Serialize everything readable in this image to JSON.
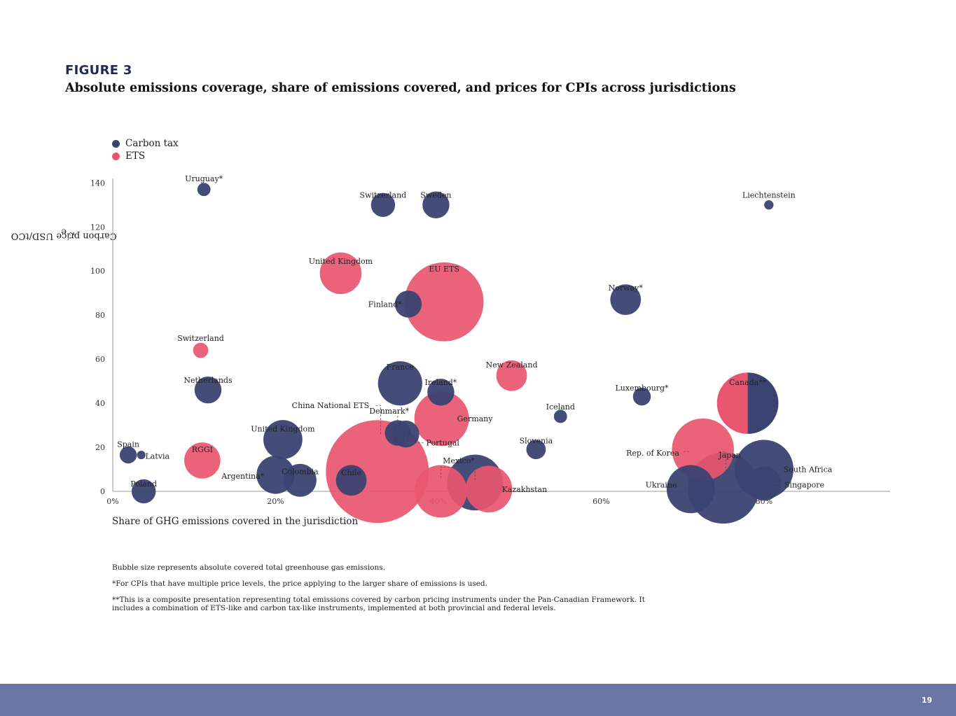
{
  "figure": {
    "label": "FIGURE 3",
    "title": "Absolute emissions coverage, share of emissions covered, and prices for CPIs across jurisdictions"
  },
  "legend": [
    {
      "label": "Carbon tax",
      "color": "#3b4270"
    },
    {
      "label": "ETS",
      "color": "#e8566f"
    }
  ],
  "notes": [
    "Bubble size represents absolute covered total greenhouse gas emissions.",
    "*For CPIs that have multiple price levels, the price applying to the larger share of emissions is used.",
    "**This is a composite presentation representing total emissions covered by carbon pricing instruments under the Pan-Canadian Framework. It includes a combination of ETS-like and carbon tax-like instruments, implemented at both provincial and federal levels."
  ],
  "page_number": "19",
  "chart_data": {
    "type": "scatter",
    "subtype": "bubble",
    "xlabel": "Share of GHG emissions covered in the jurisdiction",
    "ylabel_main": "Carbon price USD/tCO",
    "ylabel_sub": "2",
    "ylabel_end": "e",
    "x_ticks": [
      {
        "value": 0,
        "label": "0%"
      },
      {
        "value": 20,
        "label": "20%"
      },
      {
        "value": 40,
        "label": "40%"
      },
      {
        "value": 60,
        "label": "60%"
      },
      {
        "value": 80,
        "label": "80%"
      }
    ],
    "y_ticks": [
      {
        "value": 0,
        "label": "0"
      },
      {
        "value": 20,
        "label": "20"
      },
      {
        "value": 40,
        "label": "40"
      },
      {
        "value": 60,
        "label": "60"
      },
      {
        "value": 80,
        "label": "80"
      },
      {
        "value": 100,
        "label": "100"
      },
      {
        "value": 120,
        "label": "120"
      },
      {
        "value": 140,
        "label": "140"
      }
    ],
    "xlim": [
      0,
      95.5
    ],
    "ylim": [
      0,
      142
    ],
    "colors": {
      "tax": "#3b4270",
      "ets": "#e8566f"
    },
    "points": [
      {
        "name": "Uruguay*",
        "type": "tax",
        "x": 11.2,
        "y": 137,
        "size": 1.2
      },
      {
        "name": "Switzerland",
        "type": "tax",
        "x": 33.2,
        "y": 130,
        "size": 4
      },
      {
        "name": "Sweden",
        "type": "tax",
        "x": 39.7,
        "y": 130,
        "size": 5
      },
      {
        "name": "Liechtenstein",
        "type": "tax",
        "x": 80.6,
        "y": 130,
        "size": 0.6
      },
      {
        "name": "United Kingdom",
        "type": "ets",
        "x": 28,
        "y": 99,
        "size": 12
      },
      {
        "name": "EU ETS",
        "type": "ets",
        "x": 40.7,
        "y": 86,
        "size": 43
      },
      {
        "name": "Finland*",
        "type": "tax",
        "x": 36.3,
        "y": 85,
        "size": 5
      },
      {
        "name": "Norway*",
        "type": "tax",
        "x": 63,
        "y": 87,
        "size": 6.5
      },
      {
        "name": "Switzerland",
        "type": "ets",
        "x": 10.8,
        "y": 64,
        "size": 1.6
      },
      {
        "name": "Netherlands",
        "type": "tax",
        "x": 11.7,
        "y": 46,
        "size": 5
      },
      {
        "name": "France",
        "type": "tax",
        "x": 35.3,
        "y": 49,
        "size": 13.5
      },
      {
        "name": "Ireland*",
        "type": "tax",
        "x": 40.3,
        "y": 45,
        "size": 5
      },
      {
        "name": "New Zealand",
        "type": "ets",
        "x": 49,
        "y": 52.5,
        "size": 6.5
      },
      {
        "name": "Luxembourg*",
        "type": "tax",
        "x": 65,
        "y": 43,
        "size": 2.2
      },
      {
        "name": "Iceland",
        "type": "tax",
        "x": 55,
        "y": 34,
        "size": 1.2
      },
      {
        "name": "Germany",
        "type": "ets",
        "x": 40.4,
        "y": 33,
        "size": 20.5
      },
      {
        "name": "Denmark*",
        "type": "tax",
        "x": 35,
        "y": 26.5,
        "size": 4.5
      },
      {
        "name": "Portugal",
        "type": "tax",
        "x": 36,
        "y": 26,
        "size": 5
      },
      {
        "name": "China National ETS",
        "type": "ets",
        "x": 32.5,
        "y": 9,
        "size": 73
      },
      {
        "name": "United Kingdom",
        "type": "tax",
        "x": 20.9,
        "y": 23.5,
        "size": 10.5
      },
      {
        "name": "Slovenia",
        "type": "tax",
        "x": 52,
        "y": 19,
        "size": 2.6
      },
      {
        "name": "Spain",
        "type": "tax",
        "x": 1.9,
        "y": 16.5,
        "size": 2
      },
      {
        "name": "RGGI",
        "type": "ets",
        "x": 11,
        "y": 14,
        "size": 9
      },
      {
        "name": "Argentina*",
        "type": "tax",
        "x": 20,
        "y": 7.5,
        "size": 10
      },
      {
        "name": "Colombia",
        "type": "tax",
        "x": 23,
        "y": 5,
        "size": 7.5
      },
      {
        "name": "Chile",
        "type": "tax",
        "x": 29.3,
        "y": 5,
        "size": 6.5
      },
      {
        "name": "Mexico*",
        "type": "tax",
        "x": 44.5,
        "y": 4,
        "size": 21.5
      },
      {
        "name": "Kazakhstan",
        "type": "ets",
        "x": 46.2,
        "y": 1,
        "size": 15
      },
      {
        "name": "Poland",
        "type": "tax",
        "x": 3.8,
        "y": 0,
        "size": 4
      },
      {
        "name": "Ukraine",
        "type": "tax",
        "x": 71,
        "y": 1,
        "size": 16
      },
      {
        "name": "Japan",
        "type": "tax",
        "x": 75,
        "y": 1.5,
        "size": 35
      },
      {
        "name": "Singapore",
        "type": "tax",
        "x": 80,
        "y": 3.5,
        "size": 8
      },
      {
        "name": "South Africa",
        "type": "tax",
        "x": 80,
        "y": 10,
        "size": 24
      },
      {
        "name": "Rep. of Korea",
        "type": "ets",
        "x": 72.5,
        "y": 19,
        "size": 26.5
      },
      {
        "name": "Canada**",
        "type": "split",
        "x": 78,
        "y": 40,
        "size": 26
      }
    ],
    "unlabeled_points": [
      {
        "type": "ets",
        "x": 40.3,
        "y": 0,
        "size": 19
      },
      {
        "type": "tax",
        "x": 3.5,
        "y": 16.5,
        "size": 0.5
      }
    ],
    "labels": [
      {
        "text": "Uruguay*",
        "x": 11.2,
        "y": 142
      },
      {
        "text": "Switzerland",
        "x": 33.2,
        "y": 134.5
      },
      {
        "text": "Sweden",
        "x": 39.7,
        "y": 134.5
      },
      {
        "text": "Liechtenstein",
        "x": 80.6,
        "y": 134.5
      },
      {
        "text": "United Kingdom",
        "x": 28,
        "y": 104.5
      },
      {
        "text": "EU ETS",
        "x": 40.7,
        "y": 101
      },
      {
        "text": "Finland*",
        "x": 35.5,
        "y": 85,
        "anchor": "end"
      },
      {
        "text": "Norway*",
        "x": 63,
        "y": 92.5
      },
      {
        "text": "Switzerland",
        "x": 10.8,
        "y": 69.5
      },
      {
        "text": "Netherlands",
        "x": 11.7,
        "y": 50.5
      },
      {
        "text": "France",
        "x": 35.3,
        "y": 56.5
      },
      {
        "text": "Ireland*",
        "x": 40.3,
        "y": 49.5
      },
      {
        "text": "New Zealand",
        "x": 49,
        "y": 57.5
      },
      {
        "text": "Luxembourg*",
        "x": 65,
        "y": 47
      },
      {
        "text": "Iceland",
        "x": 55,
        "y": 38.5
      },
      {
        "text": "Germany",
        "x": 42.3,
        "y": 33,
        "anchor": "start"
      },
      {
        "text": "Denmark*",
        "x": 36.4,
        "y": 36.5,
        "anchor": "end"
      },
      {
        "text": "Portugal",
        "x": 38.5,
        "y": 22,
        "anchor": "start"
      },
      {
        "text": "China National ETS",
        "x": 31.5,
        "y": 39,
        "anchor": "end"
      },
      {
        "text": "United Kingdom",
        "x": 20.9,
        "y": 28.5
      },
      {
        "text": "Slovenia",
        "x": 52,
        "y": 23
      },
      {
        "text": "Spain",
        "x": 1.9,
        "y": 21.5
      },
      {
        "text": "Latvia",
        "x": 4,
        "y": 16,
        "anchor": "start"
      },
      {
        "text": "RGGI",
        "x": 11,
        "y": 19
      },
      {
        "text": "Argentina*",
        "x": 18.6,
        "y": 7,
        "anchor": "end"
      },
      {
        "text": "Colombia",
        "x": 23,
        "y": 9
      },
      {
        "text": "Chile",
        "x": 29.3,
        "y": 8.5
      },
      {
        "text": "Mexico*",
        "x": 42.5,
        "y": 14
      },
      {
        "text": "Kazakhstan",
        "x": 47.8,
        "y": 1,
        "anchor": "start"
      },
      {
        "text": "Poland",
        "x": 3.8,
        "y": 3.5
      },
      {
        "text": "Ukraine",
        "x": 69.3,
        "y": 3,
        "anchor": "end"
      },
      {
        "text": "Japan",
        "x": 75.8,
        "y": 16.5
      },
      {
        "text": "Singapore",
        "x": 82.5,
        "y": 3,
        "anchor": "start"
      },
      {
        "text": "South Africa",
        "x": 82.4,
        "y": 10,
        "anchor": "start"
      },
      {
        "text": "Rep. of Korea",
        "x": 69.6,
        "y": 17.5,
        "anchor": "end"
      },
      {
        "text": "Canada**",
        "x": 78,
        "y": 49.5
      }
    ],
    "leaders": [
      [
        [
          32.9,
          26
        ],
        [
          32.9,
          39
        ],
        [
          32.3,
          39
        ]
      ],
      [
        [
          35,
          27
        ],
        [
          35,
          35
        ]
      ],
      [
        [
          36,
          26
        ],
        [
          36,
          22
        ],
        [
          38.3,
          22
        ]
      ],
      [
        [
          40.3,
          6
        ],
        [
          40.3,
          11
        ],
        [
          44.5,
          11
        ],
        [
          44.5,
          5
        ]
      ],
      [
        [
          74.5,
          18
        ],
        [
          75.3,
          18
        ],
        [
          75.3,
          9
        ]
      ],
      [
        [
          70.1,
          18
        ],
        [
          70.9,
          18
        ]
      ],
      [
        [
          2.8,
          16.5
        ],
        [
          3.8,
          16.5
        ]
      ],
      [
        [
          80.6,
          3.5
        ],
        [
          82.3,
          3.5
        ]
      ],
      [
        [
          69.4,
          3
        ],
        [
          70.2,
          3
        ]
      ],
      [
        [
          82.3,
          10
        ],
        [
          82.7,
          10
        ]
      ]
    ]
  }
}
